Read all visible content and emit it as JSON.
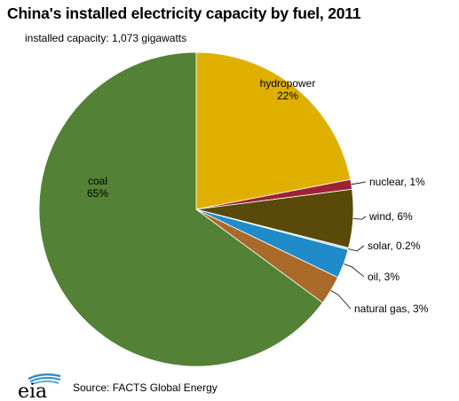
{
  "header": {
    "title": "China's installed electricity capacity by fuel, 2011",
    "subtitle": "installed capacity: 1,073 gigawatts"
  },
  "footer": {
    "logo_text": "eia",
    "source": "Source: FACTS Global Energy"
  },
  "chart_data": {
    "type": "pie",
    "title": "China's installed electricity capacity by fuel, 2011",
    "subtitle": "installed capacity: 1,073 gigawatts",
    "unit": "percent",
    "slices": [
      {
        "label": "hydropower",
        "value": 22,
        "display": "22%",
        "color": "#e0b000"
      },
      {
        "label": "nuclear",
        "value": 1,
        "display": "1%",
        "color": "#9b2335"
      },
      {
        "label": "wind",
        "value": 6,
        "display": "6%",
        "color": "#5a4a0a"
      },
      {
        "label": "solar",
        "value": 0.2,
        "display": "0.2%",
        "color": "#c9dff0"
      },
      {
        "label": "oil",
        "value": 3,
        "display": "3%",
        "color": "#1f8bc9"
      },
      {
        "label": "natural gas",
        "value": 3,
        "display": "3%",
        "color": "#a96a2a"
      },
      {
        "label": "coal",
        "value": 65,
        "display": "65%",
        "color": "#538135"
      }
    ],
    "legend": "none"
  }
}
